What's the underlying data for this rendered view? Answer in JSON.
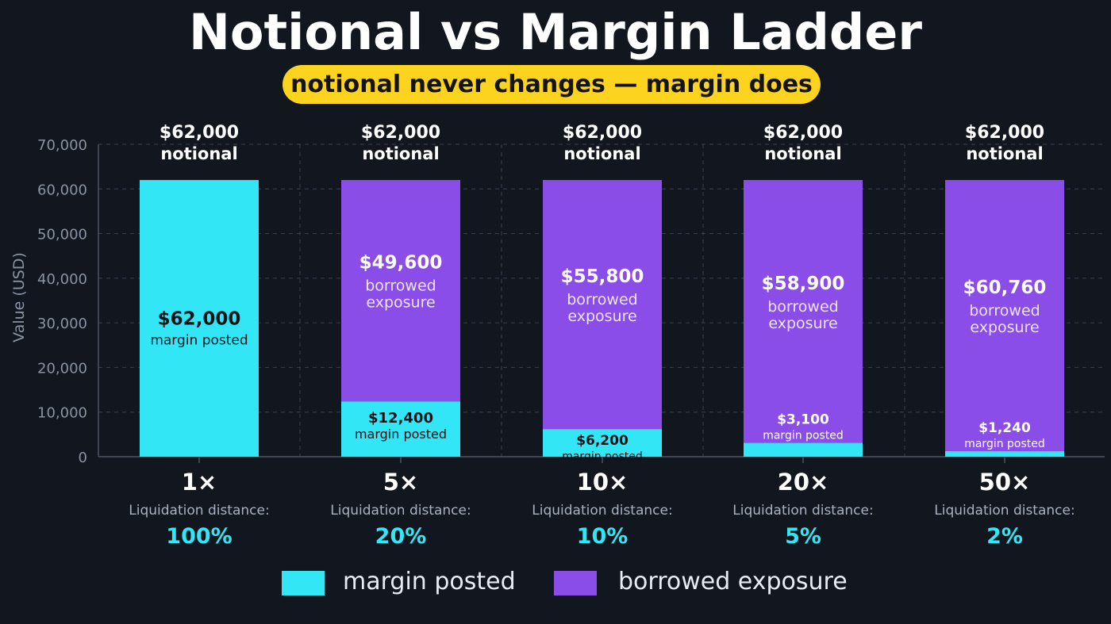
{
  "title": "Notional vs Margin Ladder",
  "subtitle": "notional never changes — margin does",
  "colors": {
    "background": "#12161e",
    "margin": "#33e6f6",
    "borrowed": "#8a4de8",
    "accent_yellow": "#fcd41f",
    "grid": "#3a4150",
    "axis_text": "#8a93a3"
  },
  "chart_data": {
    "type": "bar",
    "stacked": true,
    "ylabel": "Value (USD)",
    "ylim": [
      0,
      70000
    ],
    "y_ticks": [
      "0",
      "10,000",
      "20,000",
      "30,000",
      "40,000",
      "50,000",
      "60,000",
      "70,000"
    ],
    "y_tick_values": [
      0,
      10000,
      20000,
      30000,
      40000,
      50000,
      60000,
      70000
    ],
    "grid": true,
    "categories": [
      "1×",
      "5×",
      "10×",
      "20×",
      "50×"
    ],
    "series": [
      {
        "name": "margin posted",
        "values": [
          62000,
          12400,
          6200,
          3100,
          1240
        ]
      },
      {
        "name": "borrowed exposure",
        "values": [
          0,
          49600,
          55800,
          58900,
          60760
        ]
      }
    ],
    "top_labels": [
      {
        "value": "$62,000",
        "text": "notional"
      },
      {
        "value": "$62,000",
        "text": "notional"
      },
      {
        "value": "$62,000",
        "text": "notional"
      },
      {
        "value": "$62,000",
        "text": "notional"
      },
      {
        "value": "$62,000",
        "text": "notional"
      }
    ],
    "margin_labels": [
      {
        "value": "$62,000",
        "text": "margin posted"
      },
      {
        "value": "$12,400",
        "text": "margin posted"
      },
      {
        "value": "$6,200",
        "text": "margin posted"
      },
      {
        "value": "$3,100",
        "text": "margin posted"
      },
      {
        "value": "$1,240",
        "text": "margin posted"
      }
    ],
    "borrowed_labels": [
      null,
      {
        "value": "$49,600",
        "line1": "borrowed",
        "line2": "exposure"
      },
      {
        "value": "$55,800",
        "line1": "borrowed",
        "line2": "exposure"
      },
      {
        "value": "$58,900",
        "line1": "borrowed",
        "line2": "exposure"
      },
      {
        "value": "$60,760",
        "line1": "borrowed",
        "line2": "exposure"
      }
    ],
    "liquidation_caption": "Liquidation distance:",
    "liquidation_distance": [
      "100%",
      "20%",
      "10%",
      "5%",
      "2%"
    ],
    "legend": [
      "margin posted",
      "borrowed exposure"
    ],
    "legend_placement": "bottom-center"
  }
}
